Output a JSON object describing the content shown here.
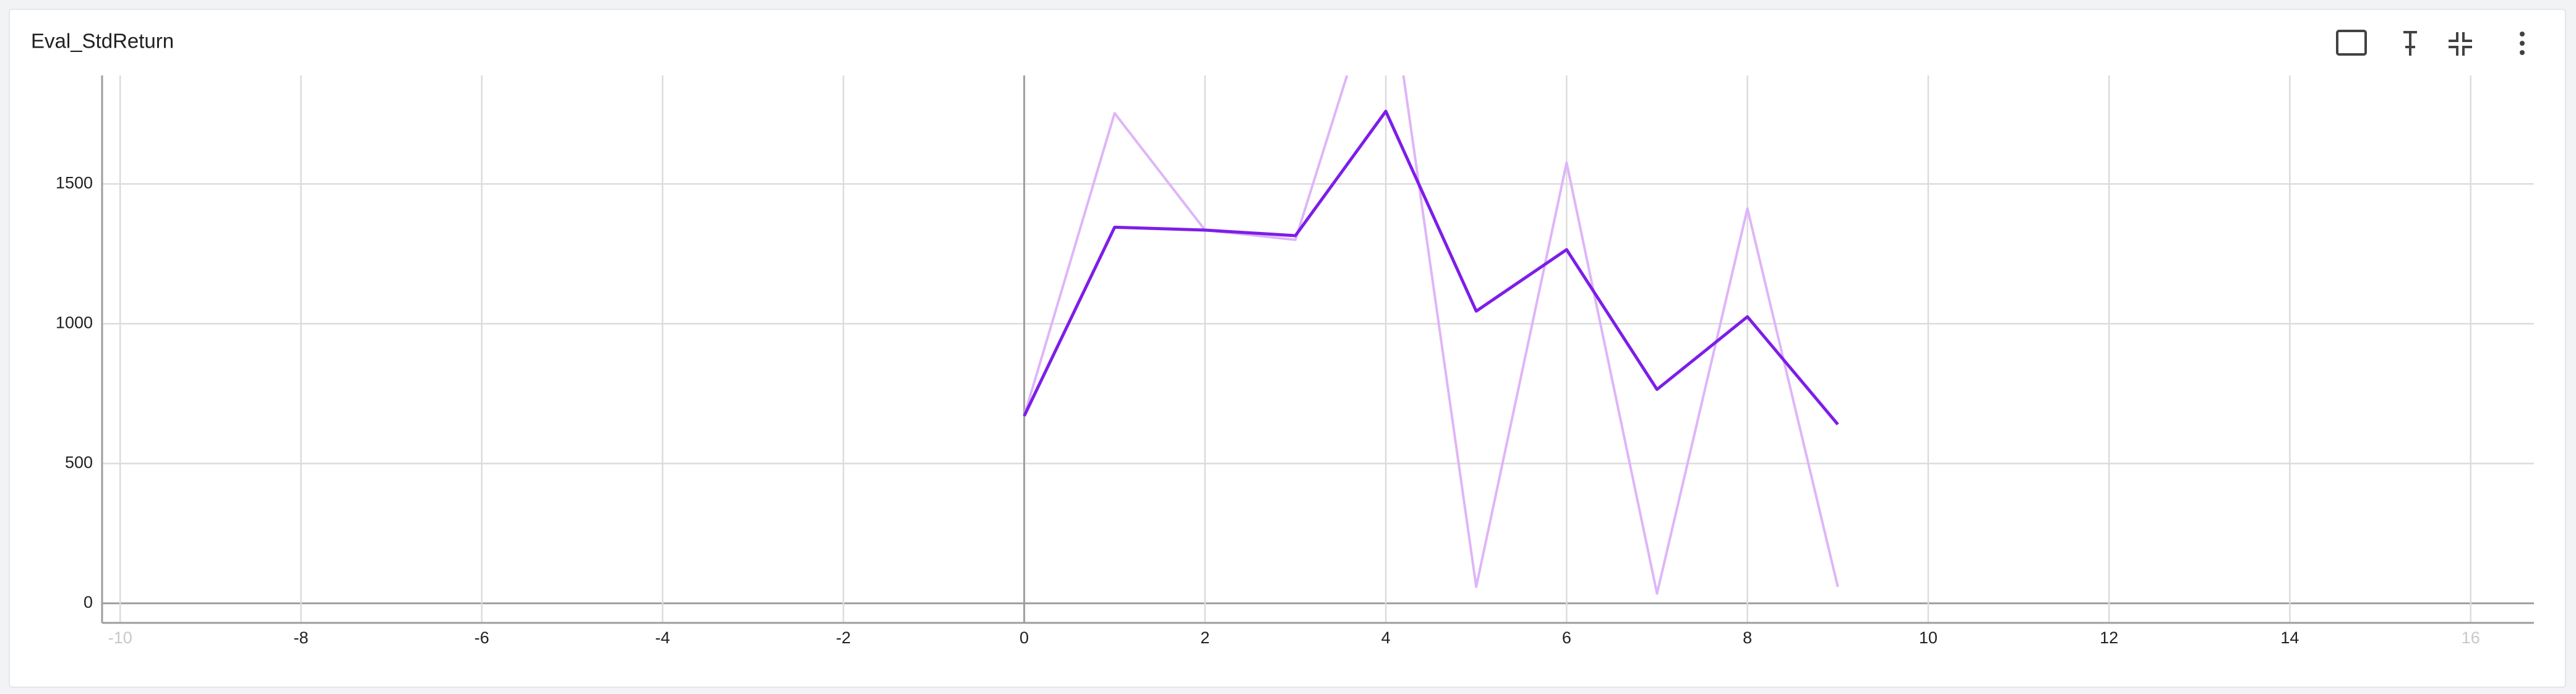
{
  "chart_data": {
    "type": "line",
    "title": "Eval_StdReturn",
    "x": [
      0,
      1,
      2,
      3,
      4,
      5,
      6,
      7,
      8,
      9
    ],
    "series": [
      {
        "color": "#dfb5f7",
        "values": [
          670,
          1753,
          1335,
          1300,
          2330,
          59,
          1576,
          35,
          1412,
          59
        ]
      },
      {
        "color": "#7d1ee8",
        "values": [
          670,
          1345,
          1335,
          1315,
          1760,
          1045,
          1265,
          765,
          1025,
          640
        ]
      }
    ],
    "xlim": [
      -10.2,
      16.7
    ],
    "xticks": [
      -10,
      -8,
      -6,
      -4,
      -2,
      0,
      2,
      4,
      6,
      8,
      10,
      12,
      14,
      16
    ],
    "ylim": [
      -70,
      1888
    ],
    "yticks": [
      0,
      500,
      1000,
      1500
    ],
    "grid": true
  }
}
